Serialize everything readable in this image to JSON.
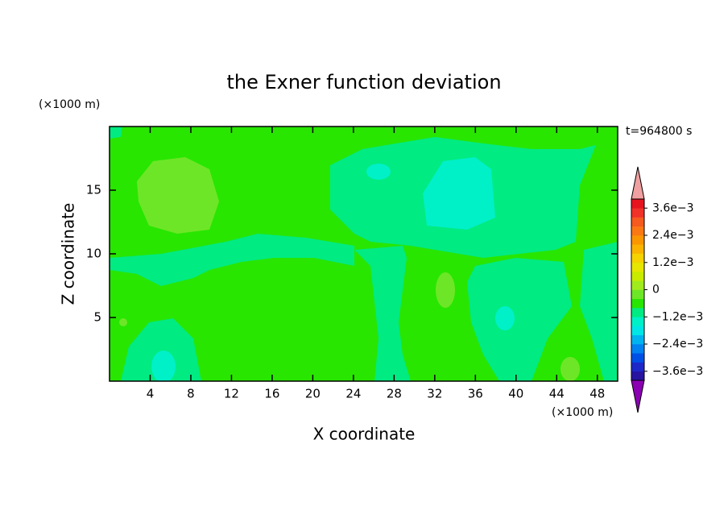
{
  "chart_data": {
    "type": "contour",
    "title": "the Exner function deviation",
    "x_label": "X coordinate",
    "y_label": "Z coordinate",
    "x_unit": "(×1000 m)",
    "y_unit": "(×1000 m)",
    "annotation": "t=964800 s",
    "xlim": [
      0,
      50
    ],
    "ylim": [
      0,
      20
    ],
    "xticks": [
      4,
      8,
      12,
      16,
      20,
      24,
      28,
      32,
      36,
      40,
      44,
      48
    ],
    "yticks": [
      5,
      10,
      15
    ],
    "colorbar": {
      "lim": [
        -0.004,
        0.004
      ],
      "colors": [
        "#2814a0",
        "#1e28c8",
        "#0050e6",
        "#0082f0",
        "#00b4f0",
        "#00e6e6",
        "#00f0c8",
        "#00eb82",
        "#28e600",
        "#6ee628",
        "#a0eb1e",
        "#c8eb00",
        "#e6e600",
        "#f5d200",
        "#fab400",
        "#fa9600",
        "#fa7814",
        "#f55a1e",
        "#f03228",
        "#e6141e"
      ],
      "over_color": "#f0a0a0",
      "under_color": "#8c00b4",
      "ticks": [
        {
          "value": 0.0036,
          "label": "3.6e−3"
        },
        {
          "value": 0.0024,
          "label": "2.4e−3"
        },
        {
          "value": 0.0012,
          "label": "1.2e−3"
        },
        0,
        {
          "value": -0.0012,
          "label": "−1.2e−3"
        },
        {
          "value": -0.0024,
          "label": "−2.4e−3"
        },
        {
          "value": -0.0036,
          "label": "−3.6e−3"
        }
      ]
    }
  }
}
